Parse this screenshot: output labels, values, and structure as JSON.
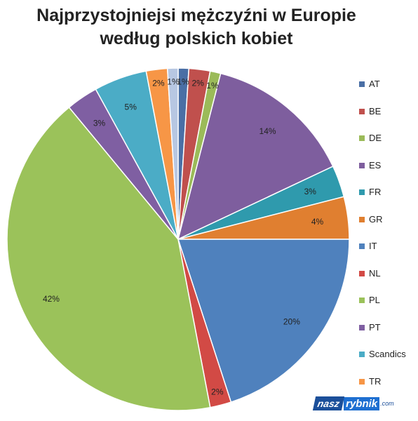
{
  "title_lines": [
    "Najprzystojniejsi mężczyźni w Europie",
    "według polskich kobiet"
  ],
  "logo": {
    "part1": "nasz",
    "part2": "rybnik",
    "part3": ".com"
  },
  "chart_data": {
    "type": "pie",
    "title": "Najprzystojniejsi mężczyźni w Europie według polskich kobiet",
    "legend_position": "right",
    "slices": [
      {
        "name": "AT",
        "value": 1,
        "label": "1%",
        "color": "#4a6fa5"
      },
      {
        "name": "BE",
        "value": 2,
        "label": "2%",
        "color": "#c0504d"
      },
      {
        "name": "DE",
        "value": 1,
        "label": "1%",
        "color": "#9bbb59"
      },
      {
        "name": "ES",
        "value": 14,
        "label": "14%",
        "color": "#7e5e9e"
      },
      {
        "name": "FR",
        "value": 3,
        "label": "3%",
        "color": "#2f9aad"
      },
      {
        "name": "GR",
        "value": 4,
        "label": "4%",
        "color": "#e07f30"
      },
      {
        "name": "IT",
        "value": 20,
        "label": "20%",
        "color": "#4f81bd"
      },
      {
        "name": "NL",
        "value": 2,
        "label": "2%",
        "color": "#d24a45"
      },
      {
        "name": "PL",
        "value": 42,
        "label": "42%",
        "color": "#9bc25a"
      },
      {
        "name": "PT",
        "value": 3,
        "label": "3%",
        "color": "#7f5fa2"
      },
      {
        "name": "Scandics",
        "value": 5,
        "label": "5%",
        "color": "#4bacc6"
      },
      {
        "name": "TR",
        "value": 2,
        "label": "2%",
        "color": "#f79646"
      },
      {
        "name": "",
        "value": 1,
        "label": "1%",
        "color": "#b7c7e2"
      }
    ]
  }
}
